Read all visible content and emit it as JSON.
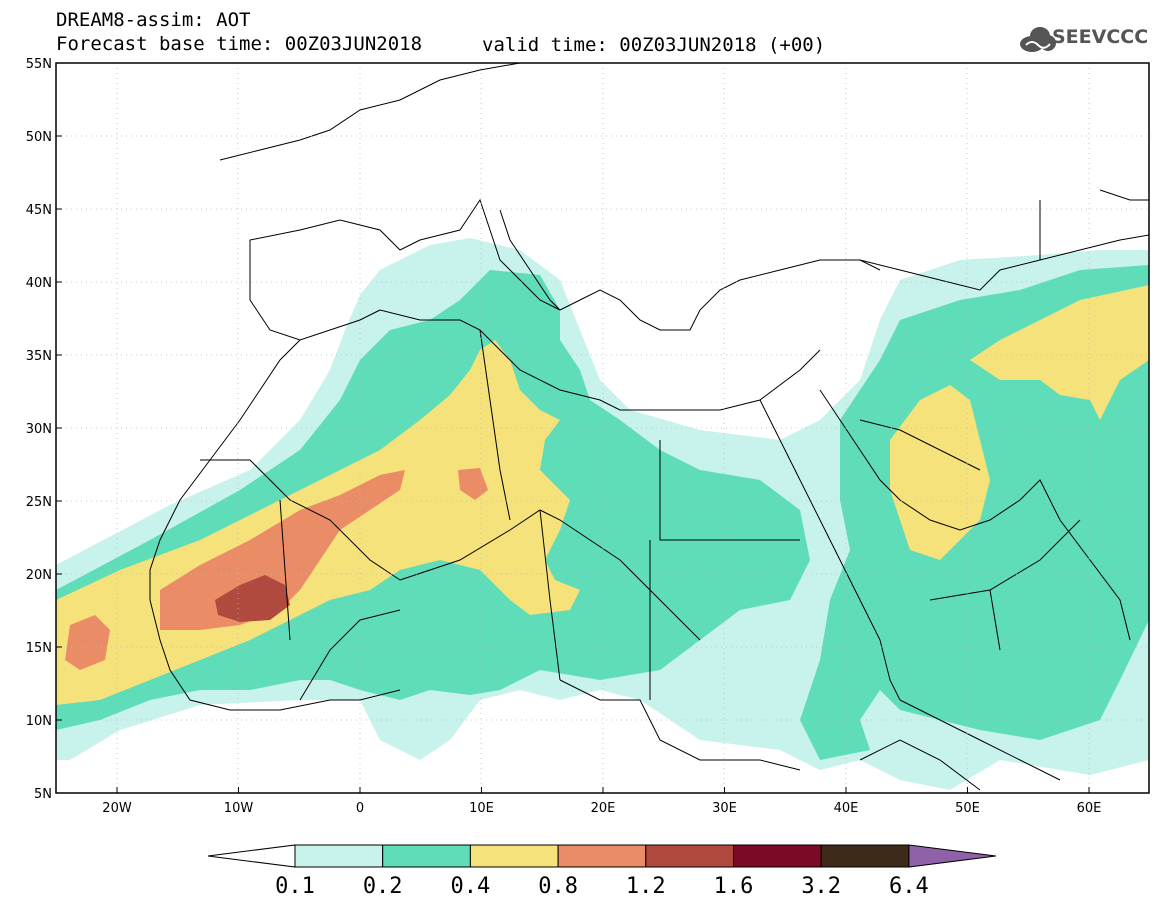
{
  "header": {
    "title": "DREAM8-assim: AOT",
    "base_time": "Forecast base time: 00Z03JUN2018",
    "valid_time": "valid time: 00Z03JUN2018 (+00)",
    "logo_text": "SEEVCCC"
  },
  "axes": {
    "lat_labels": [
      "55N",
      "50N",
      "45N",
      "40N",
      "35N",
      "30N",
      "25N",
      "20N",
      "15N",
      "10N",
      "5N"
    ],
    "lon_labels": [
      "20W",
      "10W",
      "0",
      "10E",
      "20E",
      "30E",
      "40E",
      "50E",
      "60E"
    ]
  },
  "colorbar": {
    "levels": [
      "0.1",
      "0.2",
      "0.4",
      "0.8",
      "1.2",
      "1.6",
      "3.2",
      "6.4"
    ],
    "colors": [
      "#c8f2ec",
      "#5fdcb8",
      "#f5e27a",
      "#ea8d66",
      "#b04a3e",
      "#7a0a26",
      "#3d2a18",
      "#8f62a8"
    ]
  }
}
